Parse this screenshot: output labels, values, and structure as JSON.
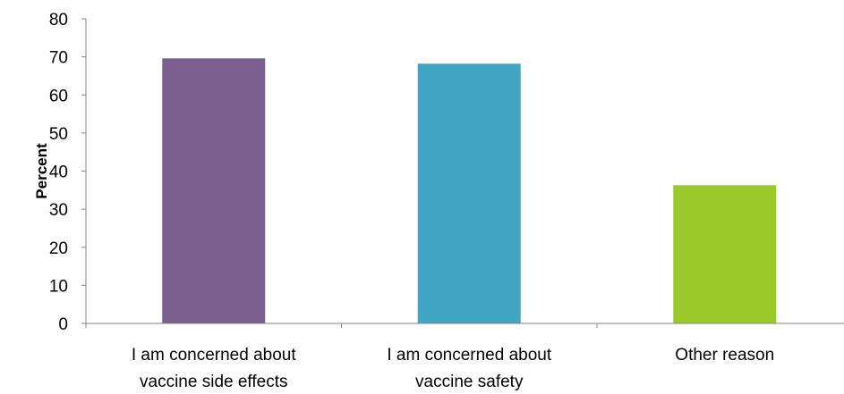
{
  "chart_data": {
    "type": "bar",
    "title": "",
    "xlabel": "",
    "ylabel": "Percent",
    "ylim": [
      0,
      80
    ],
    "yticks": [
      0,
      10,
      20,
      30,
      40,
      50,
      60,
      70,
      80
    ],
    "grid": false,
    "legend": "none",
    "categories": [
      [
        "I am concerned about",
        "vaccine side effects"
      ],
      [
        "I am concerned about",
        "vaccine safety"
      ],
      [
        "Other reason"
      ]
    ],
    "values": [
      69.6,
      68.2,
      36.3
    ],
    "colors": [
      "#7B5F8E",
      "#40A4C3",
      "#98C82A"
    ]
  }
}
